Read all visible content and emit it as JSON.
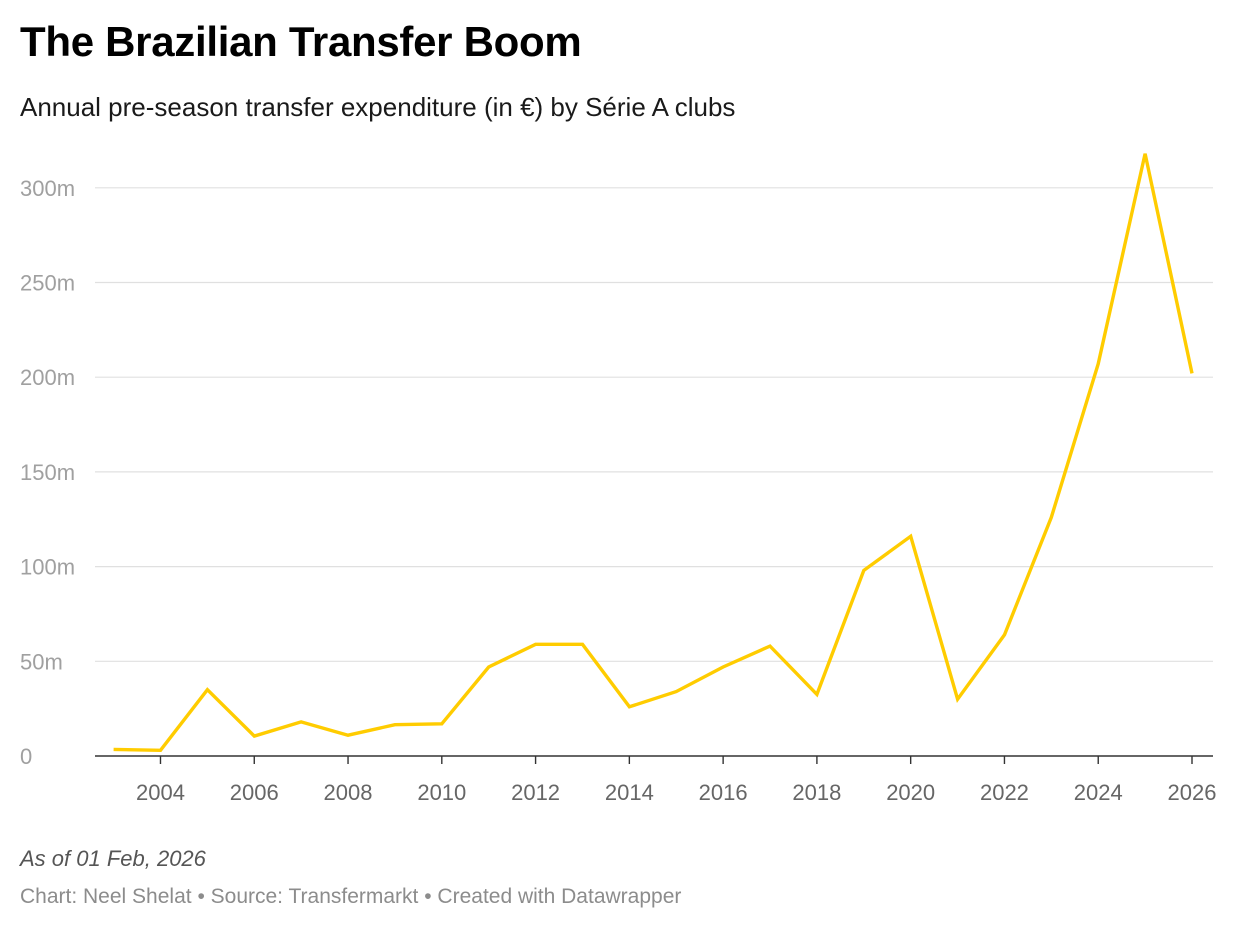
{
  "header": {
    "title": "The Brazilian Transfer Boom",
    "subtitle": "Annual pre-season transfer expenditure (in €) by Série A clubs"
  },
  "footer": {
    "note": "As of 01 Feb, 2026",
    "credit_chart": "Chart: Neel Shelat",
    "source": "Source: Transfermarkt",
    "created_with": "Created with Datawrapper",
    "separator": "•"
  },
  "colors": {
    "line": "#ffcc00",
    "grid": "#e0e0e0",
    "axis": "#333333",
    "y_tick_text": "#a0a0a0",
    "x_tick_text": "#666666"
  },
  "chart_data": {
    "type": "line",
    "title": "The Brazilian Transfer Boom",
    "subtitle": "Annual pre-season transfer expenditure (in €) by Série A clubs",
    "xlabel": "",
    "ylabel": "",
    "unit": "€ (millions)",
    "x": [
      2003,
      2004,
      2005,
      2006,
      2007,
      2008,
      2009,
      2010,
      2011,
      2012,
      2013,
      2014,
      2015,
      2016,
      2017,
      2018,
      2019,
      2020,
      2021,
      2022,
      2023,
      2024,
      2025,
      2026
    ],
    "series": [
      {
        "name": "Transfer expenditure",
        "values": [
          3.5,
          3,
          35,
          10.5,
          18,
          11,
          16.5,
          17,
          47,
          59,
          59,
          26,
          34,
          47,
          58,
          32.5,
          98,
          116,
          30,
          64,
          126,
          207,
          318,
          202
        ]
      }
    ],
    "xlim": [
      2002.5,
      2026.5
    ],
    "ylim": [
      0,
      320
    ],
    "y_ticks": [
      0,
      50,
      100,
      150,
      200,
      250,
      300
    ],
    "y_tick_labels": [
      "0",
      "50m",
      "100m",
      "150m",
      "200m",
      "250m",
      "300m"
    ],
    "x_ticks": [
      2004,
      2006,
      2008,
      2010,
      2012,
      2014,
      2016,
      2018,
      2020,
      2022,
      2024,
      2026
    ],
    "x_tick_labels": [
      "2004",
      "2006",
      "2008",
      "2010",
      "2012",
      "2014",
      "2016",
      "2018",
      "2020",
      "2022",
      "2024",
      "2026"
    ],
    "grid": true,
    "legend": "none"
  }
}
